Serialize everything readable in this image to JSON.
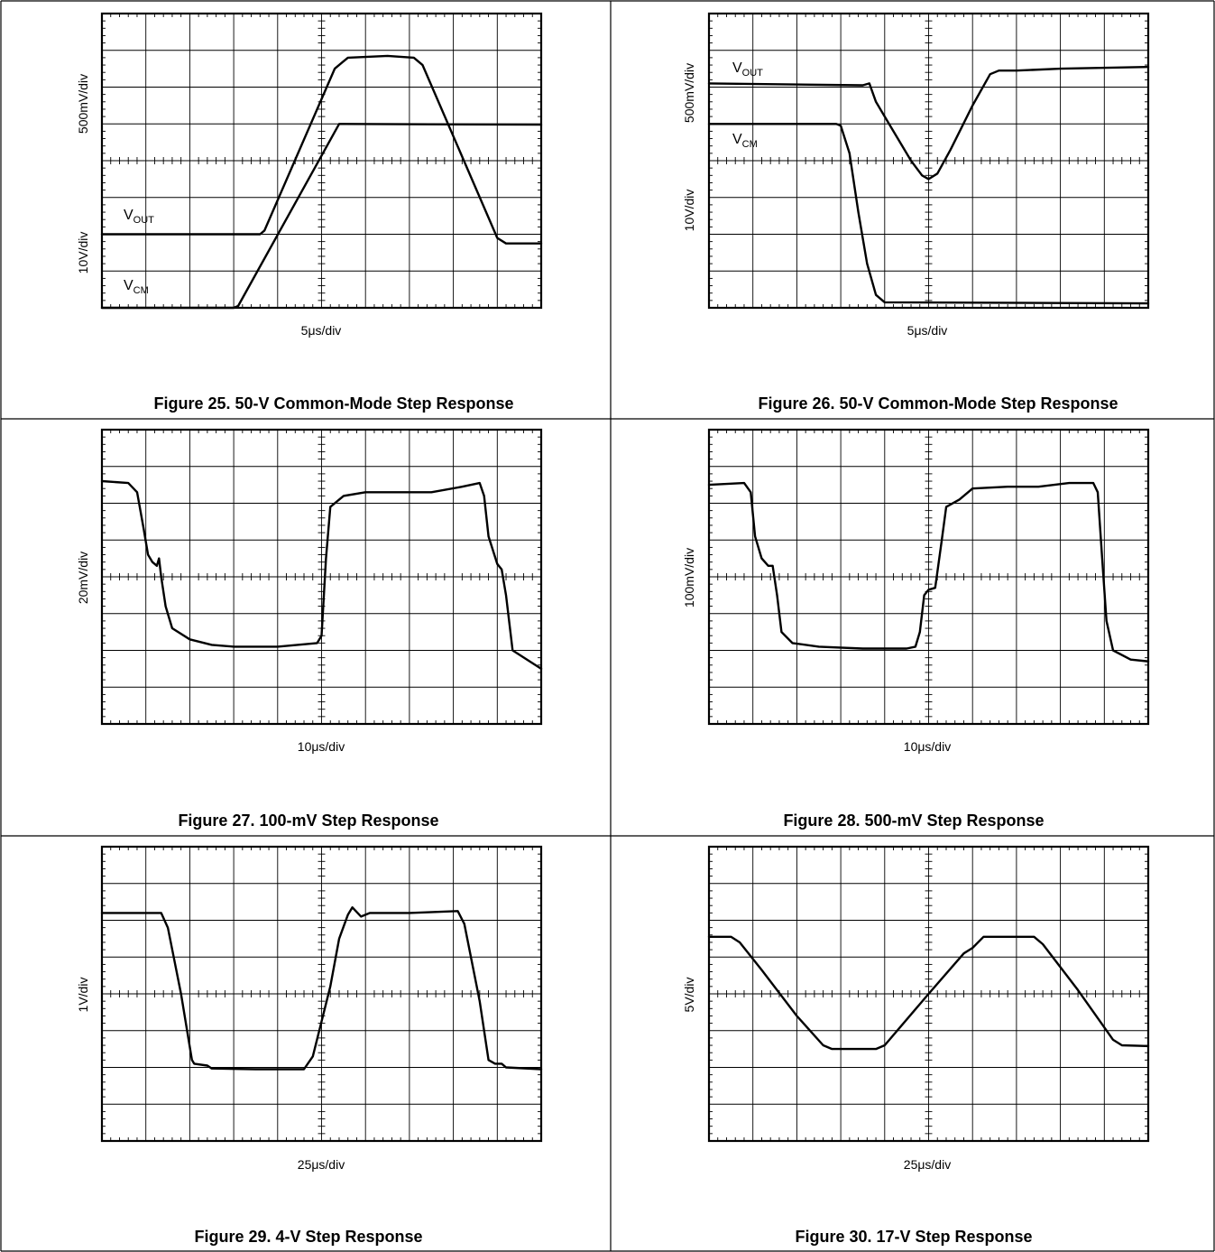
{
  "chart_data": [
    {
      "type": "line",
      "title": "Figure 25. 50-V Common-Mode Step Response",
      "xlabel": "5μs/div",
      "ylabels": [
        "500mV/div",
        "10V/div"
      ],
      "grid": true,
      "xlim": [
        0,
        10
      ],
      "ylim": [
        0,
        8
      ],
      "series": [
        {
          "name": "V_OUT",
          "label": "V",
          "sub": "OUT",
          "points": [
            [
              0,
              2.0
            ],
            [
              3.6,
              2.0
            ],
            [
              3.7,
              2.1
            ],
            [
              5.3,
              6.5
            ],
            [
              5.6,
              6.8
            ],
            [
              6.5,
              6.85
            ],
            [
              7.1,
              6.8
            ],
            [
              7.3,
              6.6
            ],
            [
              9.0,
              1.9
            ],
            [
              9.2,
              1.75
            ],
            [
              10,
              1.75
            ]
          ]
        },
        {
          "name": "V_CM",
          "label": "V",
          "sub": "CM",
          "points": [
            [
              0,
              0.0
            ],
            [
              3.0,
              0.0
            ],
            [
              3.1,
              0.05
            ],
            [
              5.4,
              5.0
            ],
            [
              10,
              4.98
            ]
          ]
        }
      ]
    },
    {
      "type": "line",
      "title": "Figure 26. 50-V Common-Mode Step Response",
      "xlabel": "5μs/div",
      "ylabels": [
        "500mV/div",
        "10V/div"
      ],
      "grid": true,
      "xlim": [
        0,
        10
      ],
      "ylim": [
        0,
        8
      ],
      "series": [
        {
          "name": "V_OUT",
          "label": "V",
          "sub": "OUT",
          "points": [
            [
              0,
              6.1
            ],
            [
              3.5,
              6.05
            ],
            [
              3.65,
              6.1
            ],
            [
              3.8,
              5.6
            ],
            [
              4.2,
              4.8
            ],
            [
              4.6,
              4.0
            ],
            [
              4.85,
              3.6
            ],
            [
              5.0,
              3.5
            ],
            [
              5.2,
              3.65
            ],
            [
              5.5,
              4.3
            ],
            [
              6.0,
              5.5
            ],
            [
              6.4,
              6.35
            ],
            [
              6.6,
              6.45
            ],
            [
              7.0,
              6.45
            ],
            [
              8.0,
              6.5
            ],
            [
              10,
              6.55
            ]
          ]
        },
        {
          "name": "V_CM",
          "label": "V",
          "sub": "CM",
          "points": [
            [
              0,
              5.0
            ],
            [
              2.9,
              5.0
            ],
            [
              3.0,
              4.95
            ],
            [
              3.2,
              4.2
            ],
            [
              3.4,
              2.6
            ],
            [
              3.6,
              1.2
            ],
            [
              3.8,
              0.35
            ],
            [
              4.0,
              0.15
            ],
            [
              10,
              0.12
            ]
          ]
        }
      ]
    },
    {
      "type": "line",
      "title": "Figure 27. 100-mV Step Response",
      "xlabel": "10μs/div",
      "ylabels": [
        "20mV/div"
      ],
      "grid": true,
      "xlim": [
        0,
        10
      ],
      "ylim": [
        0,
        8
      ],
      "series": [
        {
          "name": "",
          "points": [
            [
              0,
              6.6
            ],
            [
              0.6,
              6.55
            ],
            [
              0.8,
              6.3
            ],
            [
              0.95,
              5.3
            ],
            [
              1.05,
              4.6
            ],
            [
              1.15,
              4.4
            ],
            [
              1.25,
              4.3
            ],
            [
              1.3,
              4.5
            ],
            [
              1.35,
              4.0
            ],
            [
              1.45,
              3.2
            ],
            [
              1.6,
              2.6
            ],
            [
              2.0,
              2.3
            ],
            [
              2.5,
              2.15
            ],
            [
              3.0,
              2.1
            ],
            [
              4.0,
              2.1
            ],
            [
              4.9,
              2.2
            ],
            [
              5.0,
              2.4
            ],
            [
              5.1,
              4.5
            ],
            [
              5.2,
              5.9
            ],
            [
              5.5,
              6.2
            ],
            [
              6.0,
              6.3
            ],
            [
              7.5,
              6.3
            ],
            [
              8.2,
              6.45
            ],
            [
              8.6,
              6.55
            ],
            [
              8.7,
              6.2
            ],
            [
              8.8,
              5.1
            ],
            [
              9.0,
              4.35
            ],
            [
              9.1,
              4.2
            ],
            [
              9.2,
              3.5
            ],
            [
              9.35,
              2.0
            ],
            [
              10,
              1.5
            ]
          ]
        }
      ]
    },
    {
      "type": "line",
      "title": "Figure 28. 500-mV Step Response",
      "xlabel": "10μs/div",
      "ylabels": [
        "100mV/div"
      ],
      "grid": true,
      "xlim": [
        0,
        10
      ],
      "ylim": [
        0,
        8
      ],
      "series": [
        {
          "name": "",
          "points": [
            [
              0,
              6.5
            ],
            [
              0.8,
              6.55
            ],
            [
              0.95,
              6.3
            ],
            [
              1.05,
              5.1
            ],
            [
              1.2,
              4.5
            ],
            [
              1.35,
              4.3
            ],
            [
              1.45,
              4.3
            ],
            [
              1.55,
              3.5
            ],
            [
              1.65,
              2.5
            ],
            [
              1.9,
              2.2
            ],
            [
              2.5,
              2.1
            ],
            [
              3.5,
              2.05
            ],
            [
              4.5,
              2.05
            ],
            [
              4.7,
              2.1
            ],
            [
              4.8,
              2.5
            ],
            [
              4.9,
              3.5
            ],
            [
              5.0,
              3.65
            ],
            [
              5.15,
              3.7
            ],
            [
              5.3,
              5.0
            ],
            [
              5.4,
              5.9
            ],
            [
              5.7,
              6.1
            ],
            [
              6.0,
              6.4
            ],
            [
              6.8,
              6.45
            ],
            [
              7.5,
              6.45
            ],
            [
              8.2,
              6.55
            ],
            [
              8.75,
              6.55
            ],
            [
              8.85,
              6.3
            ],
            [
              8.95,
              4.5
            ],
            [
              9.05,
              2.8
            ],
            [
              9.2,
              2.0
            ],
            [
              9.6,
              1.75
            ],
            [
              10,
              1.7
            ]
          ]
        }
      ]
    },
    {
      "type": "line",
      "title": "Figure 29. 4-V Step Response",
      "xlabel": "25μs/div",
      "ylabels": [
        "1V/div"
      ],
      "grid": true,
      "xlim": [
        0,
        10
      ],
      "ylim": [
        0,
        8
      ],
      "series": [
        {
          "name": "",
          "points": [
            [
              0,
              6.2
            ],
            [
              1.35,
              6.2
            ],
            [
              1.5,
              5.8
            ],
            [
              1.8,
              4.0
            ],
            [
              2.05,
              2.2
            ],
            [
              2.1,
              2.1
            ],
            [
              2.4,
              2.05
            ],
            [
              2.5,
              1.97
            ],
            [
              3.5,
              1.95
            ],
            [
              4.6,
              1.95
            ],
            [
              4.8,
              2.3
            ],
            [
              5.2,
              4.2
            ],
            [
              5.4,
              5.5
            ],
            [
              5.6,
              6.15
            ],
            [
              5.7,
              6.35
            ],
            [
              5.9,
              6.1
            ],
            [
              6.1,
              6.2
            ],
            [
              7.0,
              6.2
            ],
            [
              8.1,
              6.25
            ],
            [
              8.25,
              5.9
            ],
            [
              8.6,
              3.8
            ],
            [
              8.8,
              2.2
            ],
            [
              8.95,
              2.1
            ],
            [
              9.1,
              2.1
            ],
            [
              9.2,
              2.0
            ],
            [
              10,
              1.95
            ]
          ]
        }
      ]
    },
    {
      "type": "line",
      "title": "Figure 30. 17-V Step Response",
      "xlabel": "25μs/div",
      "ylabels": [
        "5V/div"
      ],
      "grid": true,
      "xlim": [
        0,
        10
      ],
      "ylim": [
        0,
        8
      ],
      "series": [
        {
          "name": "",
          "points": [
            [
              0,
              5.55
            ],
            [
              0.5,
              5.55
            ],
            [
              0.7,
              5.4
            ],
            [
              1.2,
              4.65
            ],
            [
              2.0,
              3.4
            ],
            [
              2.6,
              2.6
            ],
            [
              2.8,
              2.5
            ],
            [
              3.8,
              2.5
            ],
            [
              4.0,
              2.6
            ],
            [
              5.0,
              4.0
            ],
            [
              5.8,
              5.1
            ],
            [
              6.0,
              5.25
            ],
            [
              6.25,
              5.55
            ],
            [
              7.4,
              5.55
            ],
            [
              7.6,
              5.35
            ],
            [
              8.4,
              4.1
            ],
            [
              9.2,
              2.75
            ],
            [
              9.4,
              2.6
            ],
            [
              10,
              2.58
            ]
          ]
        }
      ]
    }
  ]
}
